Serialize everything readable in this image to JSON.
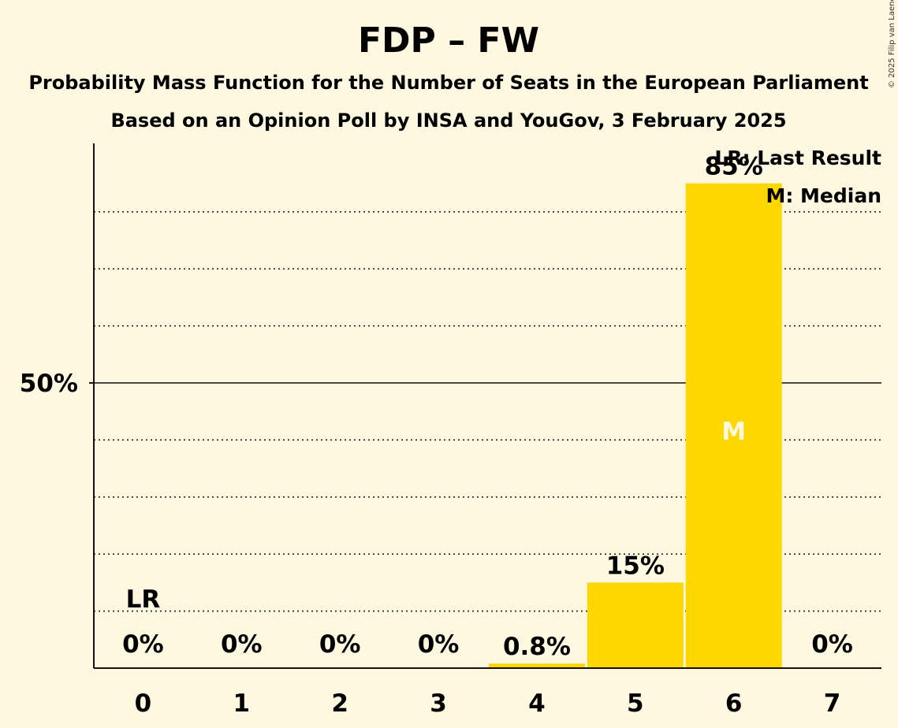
{
  "title": "FDP – FW",
  "subtitle1": "Probability Mass Function for the Number of Seats in the European Parliament",
  "subtitle2": "Based on an Opinion Poll by INSA and YouGov, 3 February 2025",
  "copyright": "© 2025 Filip van Laenen",
  "legend": {
    "last_result": "LR: Last Result",
    "median": "M: Median"
  },
  "colors": {
    "background": "#fef8e1",
    "bar": "#ffd700",
    "text": "#111111"
  },
  "chart_data": {
    "type": "bar",
    "categories": [
      "0",
      "1",
      "2",
      "3",
      "4",
      "5",
      "6",
      "7"
    ],
    "values": [
      0,
      0,
      0,
      0,
      0.8,
      15,
      85,
      0
    ],
    "value_labels": [
      "0%",
      "0%",
      "0%",
      "0%",
      "0.8%",
      "15%",
      "85%",
      "0%"
    ],
    "ylim": [
      0,
      92
    ],
    "y_tick_labels": [
      {
        "value": 50,
        "label": "50%"
      }
    ],
    "gridlines": [
      10,
      20,
      30,
      40,
      60,
      70,
      80
    ],
    "last_result_category": "0",
    "last_result_marker": "LR",
    "median_category": "6",
    "median_marker": "M",
    "grid": true,
    "legend_position": "top-right"
  }
}
